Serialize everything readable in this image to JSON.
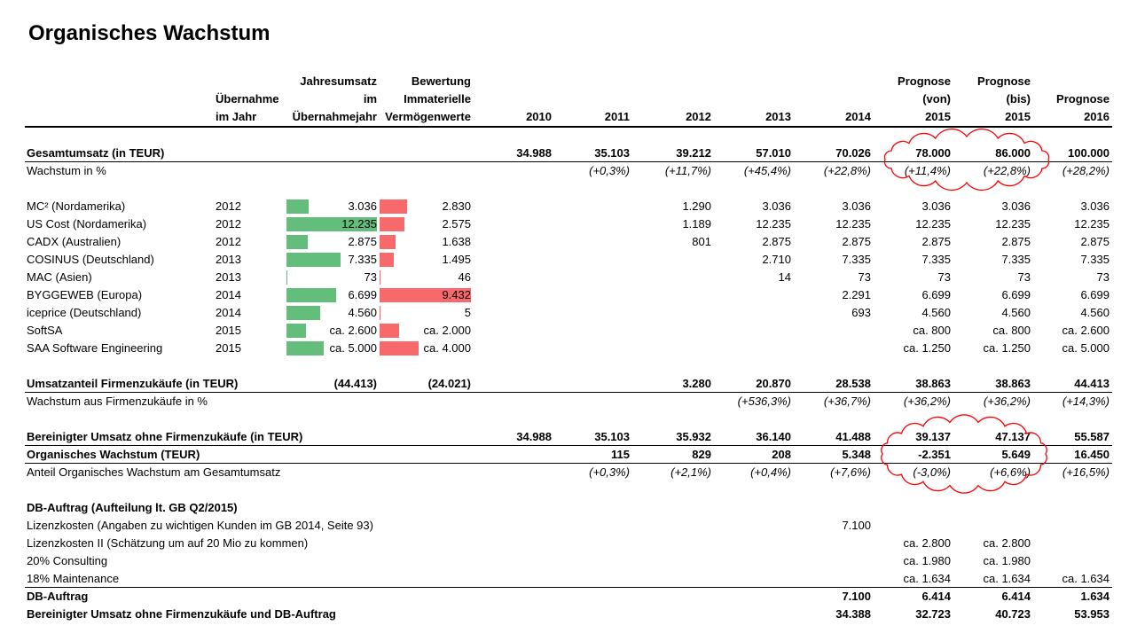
{
  "title": "Organisches Wachstum",
  "headers": {
    "acquisition_year": [
      "Übernahme",
      "im Jahr"
    ],
    "revenue": [
      "Jahresumsatz",
      "im",
      "Übernahmejahr"
    ],
    "valuation": [
      "Bewertung",
      "Immaterielle",
      "Vermögenwerte"
    ],
    "years": [
      "2010",
      "2011",
      "2012",
      "2013",
      "2014"
    ],
    "forecast_from": [
      "Prognose",
      "(von)",
      "2015"
    ],
    "forecast_to": [
      "Prognose",
      "(bis)",
      "2015"
    ],
    "forecast_2016": [
      "Prognose",
      "2016"
    ]
  },
  "rows": [
    {
      "label": "Gesamtumsatz (in TEUR)",
      "bold": true,
      "italic": false,
      "acq_year": "",
      "revenue": "",
      "valuation": "",
      "values": [
        "34.988",
        "35.103",
        "39.212",
        "57.010",
        "70.026",
        "78.000",
        "86.000",
        "100.000"
      ]
    },
    {
      "label": "Wachstum in  %",
      "bold": false,
      "italic": true,
      "acq_year": "",
      "revenue": "",
      "valuation": "",
      "values": [
        "",
        "(+0,3%)",
        "(+11,7%)",
        "(+45,4%)",
        "(+22,8%)",
        "(+11,4%)",
        "(+22,8%)",
        "(+28,2%)"
      ]
    },
    {
      "label": "MC² (Nordamerika)",
      "bold": false,
      "italic": false,
      "acq_year": "2012",
      "revenue": "3.036",
      "valuation": "2.830",
      "rev_level": 3036,
      "val_level": 2830,
      "values": [
        "",
        "",
        "1.290",
        "3.036",
        "3.036",
        "3.036",
        "3.036",
        "3.036"
      ]
    },
    {
      "label": "US Cost (Nordamerika)",
      "bold": false,
      "italic": false,
      "acq_year": "2012",
      "revenue": "12.235",
      "valuation": "2.575",
      "rev_level": 12235,
      "val_level": 2575,
      "values": [
        "",
        "",
        "1.189",
        "12.235",
        "12.235",
        "12.235",
        "12.235",
        "12.235"
      ]
    },
    {
      "label": "CADX (Australien)",
      "bold": false,
      "italic": false,
      "acq_year": "2012",
      "revenue": "2.875",
      "valuation": "1.638",
      "rev_level": 2875,
      "val_level": 1638,
      "values": [
        "",
        "",
        "801",
        "2.875",
        "2.875",
        "2.875",
        "2.875",
        "2.875"
      ]
    },
    {
      "label": "COSINUS (Deutschland)",
      "bold": false,
      "italic": false,
      "acq_year": "2013",
      "revenue": "7.335",
      "valuation": "1.495",
      "rev_level": 7335,
      "val_level": 1495,
      "values": [
        "",
        "",
        "",
        "2.710",
        "7.335",
        "7.335",
        "7.335",
        "7.335"
      ]
    },
    {
      "label": "MAC (Asien)",
      "bold": false,
      "italic": false,
      "acq_year": "2013",
      "revenue": "73",
      "valuation": "46",
      "rev_level": 73,
      "val_level": 46,
      "values": [
        "",
        "",
        "",
        "14",
        "73",
        "73",
        "73",
        "73"
      ]
    },
    {
      "label": "BYGGEWEB (Europa)",
      "bold": false,
      "italic": false,
      "acq_year": "2014",
      "revenue": "6.699",
      "valuation": "9.432",
      "rev_level": 6699,
      "val_level": 9432,
      "values": [
        "",
        "",
        "",
        "",
        "2.291",
        "6.699",
        "6.699",
        "6.699"
      ]
    },
    {
      "label": "iceprice (Deutschland)",
      "bold": false,
      "italic": false,
      "acq_year": "2014",
      "revenue": "4.560",
      "valuation": "5",
      "rev_level": 4560,
      "val_level": 5,
      "values": [
        "",
        "",
        "",
        "",
        "693",
        "4.560",
        "4.560",
        "4.560"
      ]
    },
    {
      "label": "SoftSA",
      "bold": false,
      "italic": false,
      "acq_year": "2015",
      "revenue": "ca. 2.600",
      "valuation": "ca. 2.000",
      "rev_level": 2600,
      "val_level": 2000,
      "values": [
        "",
        "",
        "",
        "",
        "",
        "ca. 800",
        "ca. 800",
        "ca. 2.600"
      ]
    },
    {
      "label": "SAA Software Engineering",
      "bold": false,
      "italic": false,
      "acq_year": "2015",
      "revenue": "ca. 5.000",
      "valuation": "ca. 4.000",
      "rev_level": 5000,
      "val_level": 4000,
      "values": [
        "",
        "",
        "",
        "",
        "",
        "ca. 1.250",
        "ca. 1.250",
        "ca. 5.000"
      ]
    },
    {
      "label": "Umsatzanteil Firmenzukäufe (in TEUR)",
      "bold": true,
      "italic": false,
      "acq_year": "",
      "revenue": "(44.413)",
      "valuation": "(24.021)",
      "values": [
        "",
        "",
        "3.280",
        "20.870",
        "28.538",
        "38.863",
        "38.863",
        "44.413"
      ]
    },
    {
      "label": "Wachstum aus Firmenzukäufe in %",
      "bold": false,
      "italic": true,
      "acq_year": "",
      "revenue": "",
      "valuation": "",
      "values": [
        "",
        "",
        "",
        "(+536,3%)",
        "(+36,7%)",
        "(+36,2%)",
        "(+36,2%)",
        "(+14,3%)"
      ]
    },
    {
      "label": "Bereinigter Umsatz ohne Firmenzukäufe (in TEUR)",
      "bold": true,
      "italic": false,
      "acq_year": "",
      "revenue": "",
      "valuation": "",
      "values": [
        "34.988",
        "35.103",
        "35.932",
        "36.140",
        "41.488",
        "39.137",
        "47.137",
        "55.587"
      ]
    },
    {
      "label": "Organisches Wachstum (TEUR)",
      "bold": true,
      "italic": false,
      "acq_year": "",
      "revenue": "",
      "valuation": "",
      "values": [
        "",
        "115",
        "829",
        "208",
        "5.348",
        "-2.351",
        "5.649",
        "16.450"
      ]
    },
    {
      "label": "Anteil Organisches Wachstum am Gesamtumsatz",
      "bold": false,
      "italic": true,
      "acq_year": "",
      "revenue": "",
      "valuation": "",
      "values": [
        "",
        "(+0,3%)",
        "(+2,1%)",
        "(+0,4%)",
        "(+7,6%)",
        "(-3,0%)",
        "(+6,6%)",
        "(+16,5%)"
      ]
    },
    {
      "label": "DB-Auftrag (Aufteilung lt. GB Q2/2015)",
      "bold": true,
      "italic": false,
      "acq_year": "",
      "revenue": "",
      "valuation": "",
      "values": [
        "",
        "",
        "",
        "",
        "",
        "",
        "",
        ""
      ]
    },
    {
      "label": "Lizenzkosten (Angaben zu wichtigen Kunden im GB 2014, Seite 93)",
      "bold": false,
      "italic": false,
      "acq_year": "",
      "revenue": "",
      "valuation": "",
      "values": [
        "",
        "",
        "",
        "",
        "7.100",
        "",
        "",
        ""
      ]
    },
    {
      "label": "Lizenzkosten II (Schätzung um auf 20 Mio zu kommen)",
      "bold": false,
      "italic": false,
      "acq_year": "",
      "revenue": "",
      "valuation": "",
      "values": [
        "",
        "",
        "",
        "",
        "",
        "ca. 2.800",
        "ca. 2.800",
        ""
      ]
    },
    {
      "label": "20% Consulting",
      "bold": false,
      "italic": false,
      "acq_year": "",
      "revenue": "",
      "valuation": "",
      "values": [
        "",
        "",
        "",
        "",
        "",
        "ca. 1.980",
        "ca. 1.980",
        ""
      ]
    },
    {
      "label": "18% Maintenance",
      "bold": false,
      "italic": false,
      "acq_year": "",
      "revenue": "",
      "valuation": "",
      "values": [
        "",
        "",
        "",
        "",
        "",
        "ca. 1.634",
        "ca. 1.634",
        "ca. 1.634"
      ]
    },
    {
      "label": "DB-Auftrag",
      "bold": true,
      "italic": false,
      "acq_year": "",
      "revenue": "",
      "valuation": "",
      "values": [
        "",
        "",
        "",
        "",
        "7.100",
        "6.414",
        "6.414",
        "1.634"
      ]
    },
    {
      "label": "Bereinigter Umsatz ohne Firmenzukäufe und DB-Auftrag",
      "bold": true,
      "italic": false,
      "acq_year": "",
      "revenue": "",
      "valuation": "",
      "values": [
        "",
        "",
        "",
        "",
        "34.388",
        "32.723",
        "40.723",
        "53.953"
      ]
    }
  ],
  "colors": {
    "bar_green": "#63be7b",
    "bar_red": "#f8696b",
    "cloud": "#ff0000"
  }
}
